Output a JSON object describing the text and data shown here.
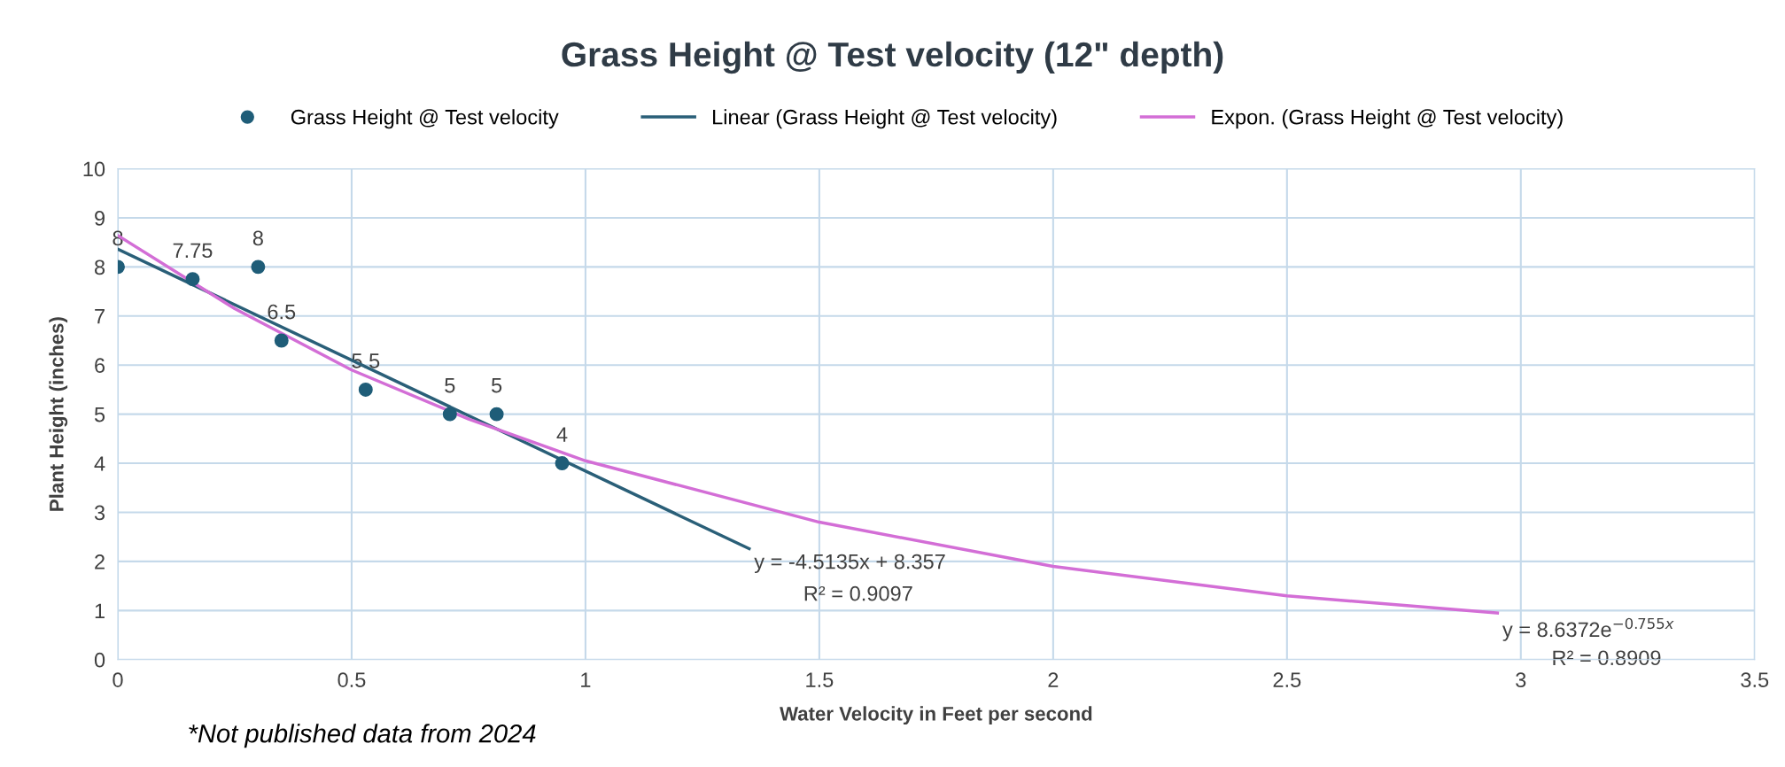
{
  "chart_data": {
    "type": "scatter",
    "title": "Grass Height @ Test velocity (12\" depth)",
    "xlabel": "Water Velocity in Feet per second",
    "ylabel": "Plant Height (inches)",
    "xlim": [
      0,
      3.5
    ],
    "xticks": [
      0,
      0.5,
      1,
      1.5,
      2,
      2.5,
      3,
      3.5
    ],
    "ylim": [
      0,
      10
    ],
    "yticks": [
      0,
      1,
      2,
      3,
      4,
      5,
      6,
      7,
      8,
      9,
      10
    ],
    "grid": true,
    "legend": "top",
    "series": [
      {
        "name": "Grass Height @ Test velocity",
        "color": "#1f5d78",
        "marker": "circle",
        "data_labels": true,
        "x": [
          0,
          0.16,
          0.3,
          0.35,
          0.53,
          0.71,
          0.81,
          0.95
        ],
        "values": [
          8,
          7.75,
          8,
          6.5,
          5.5,
          5,
          5,
          4
        ]
      },
      {
        "name": "Linear (Grass Height @ Test velocity)",
        "type": "line",
        "color": "#2a5f78",
        "line_style": "solid",
        "x": [
          0,
          1.35
        ],
        "values": [
          8.36,
          2.26
        ]
      },
      {
        "name": "Expon. (Grass Height @ Test velocity)",
        "type": "line",
        "color": "#d36ed6",
        "line_style": "solid",
        "x": [
          0,
          0.25,
          0.5,
          0.75,
          1,
          1.5,
          2,
          2.5,
          2.95
        ],
        "values": [
          8.64,
          7.15,
          5.9,
          4.9,
          4.05,
          2.8,
          1.9,
          1.3,
          0.95
        ]
      }
    ],
    "annotations": [
      "y = -4.5135x + 8.357",
      "R² = 0.9097",
      "y = 8.6372e$^{−0.755x}$",
      "R² = 0.8909",
      "*Not published data from 2024"
    ]
  }
}
